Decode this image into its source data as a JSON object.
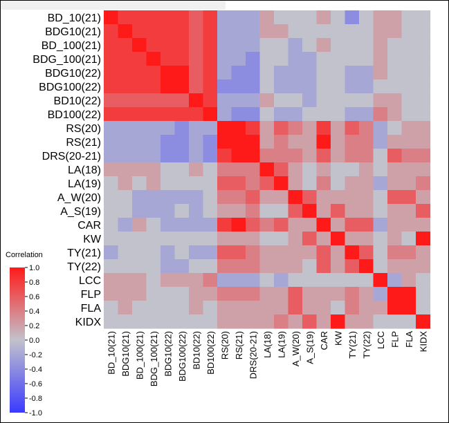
{
  "chart_data": {
    "type": "heatmap",
    "title": "",
    "row_labels": [
      "BD_10(21)",
      "BDG10(21)",
      "BD_100(21)",
      "BDG_100(21)",
      "BDG10(22)",
      "BDG100(22)",
      "BD10(22)",
      "BD100(22)",
      "RS(20)",
      "RS(21)",
      "DRS(20-21)",
      "LA(18)",
      "LA(19)",
      "A_W(20)",
      "A_S(19)",
      "CAR",
      "KW",
      "TY(21)",
      "TY(22)",
      "LCC",
      "FLP",
      "FLA",
      "KIDX"
    ],
    "col_labels": [
      "BD_10(21)",
      "BDG10(21)",
      "BD_100(21)",
      "BDG_100(21)",
      "BDG10(22)",
      "BDG100(22)",
      "BD10(22)",
      "BD100(22)",
      "RS(20)",
      "RS(21)",
      "DRS(20-21)",
      "LA(18)",
      "LA(19)",
      "A_W(20)",
      "A_S(19)",
      "CAR",
      "KW",
      "TY(21)",
      "TY(22)",
      "LCC",
      "FLP",
      "FLA",
      "KIDX"
    ],
    "values": [
      [
        1.0,
        0.8,
        0.8,
        0.8,
        0.8,
        0.8,
        0.6,
        0.8,
        -0.2,
        -0.2,
        -0.2,
        0.2,
        0.0,
        0.0,
        0.0,
        0.2,
        0.0,
        -0.4,
        0.0,
        0.2,
        0.2,
        0.0,
        0.0
      ],
      [
        0.8,
        1.0,
        0.8,
        0.8,
        0.8,
        0.8,
        0.6,
        0.8,
        -0.2,
        -0.2,
        -0.2,
        0.2,
        0.2,
        0.0,
        0.0,
        0.0,
        0.0,
        0.0,
        0.0,
        0.2,
        0.2,
        0.0,
        0.0
      ],
      [
        0.8,
        0.8,
        1.0,
        0.8,
        0.8,
        0.8,
        0.6,
        0.8,
        -0.2,
        -0.2,
        -0.2,
        0.0,
        0.0,
        -0.2,
        0.0,
        0.2,
        0.0,
        0.0,
        0.0,
        0.2,
        0.0,
        0.0,
        0.0
      ],
      [
        0.8,
        0.8,
        0.8,
        1.0,
        0.8,
        0.8,
        0.6,
        0.8,
        -0.2,
        -0.2,
        -0.4,
        0.0,
        0.0,
        -0.2,
        -0.2,
        0.0,
        0.0,
        0.0,
        0.0,
        0.2,
        0.0,
        0.0,
        0.0
      ],
      [
        0.8,
        0.8,
        0.8,
        0.8,
        1.0,
        1.0,
        0.6,
        0.8,
        -0.2,
        -0.4,
        -0.4,
        0.0,
        -0.2,
        -0.2,
        -0.2,
        0.0,
        0.0,
        -0.2,
        -0.2,
        0.2,
        0.0,
        0.0,
        0.0
      ],
      [
        0.8,
        0.8,
        0.8,
        0.8,
        1.0,
        1.0,
        0.6,
        0.8,
        -0.4,
        -0.4,
        -0.4,
        0.0,
        -0.2,
        -0.2,
        -0.2,
        0.0,
        0.0,
        -0.2,
        -0.2,
        0.0,
        0.0,
        0.0,
        0.0
      ],
      [
        0.6,
        0.6,
        0.6,
        0.6,
        0.6,
        0.6,
        1.0,
        0.8,
        -0.2,
        -0.2,
        -0.2,
        0.2,
        0.0,
        0.0,
        -0.2,
        0.0,
        0.0,
        0.0,
        0.0,
        0.2,
        0.2,
        0.0,
        0.0
      ],
      [
        0.8,
        0.8,
        0.8,
        0.8,
        0.8,
        0.8,
        0.8,
        1.0,
        -0.2,
        -0.4,
        -0.4,
        0.0,
        -0.2,
        -0.2,
        0.0,
        0.0,
        0.0,
        -0.2,
        -0.2,
        0.4,
        0.2,
        0.0,
        0.0
      ],
      [
        -0.2,
        -0.2,
        -0.2,
        -0.2,
        -0.2,
        -0.4,
        -0.2,
        -0.2,
        1.0,
        1.0,
        0.8,
        0.2,
        0.6,
        0.4,
        0.2,
        0.8,
        0.2,
        0.6,
        0.4,
        -0.2,
        0.0,
        0.2,
        0.2
      ],
      [
        -0.2,
        -0.2,
        -0.2,
        -0.2,
        -0.4,
        -0.4,
        -0.2,
        -0.4,
        1.0,
        1.0,
        1.0,
        0.2,
        0.4,
        0.2,
        0.2,
        1.0,
        0.2,
        0.4,
        0.4,
        -0.2,
        0.2,
        0.2,
        0.2
      ],
      [
        -0.2,
        -0.2,
        -0.2,
        -0.2,
        -0.4,
        -0.4,
        -0.2,
        -0.4,
        0.8,
        1.0,
        1.0,
        0.4,
        0.4,
        0.4,
        0.2,
        0.6,
        0.2,
        0.4,
        0.4,
        0.0,
        0.6,
        0.4,
        0.4
      ],
      [
        0.2,
        0.2,
        0.2,
        0.2,
        0.0,
        0.0,
        0.2,
        0.0,
        0.4,
        0.4,
        0.4,
        1.0,
        0.6,
        0.2,
        0.0,
        0.2,
        0.0,
        0.0,
        0.2,
        0.0,
        0.2,
        0.2,
        0.2
      ],
      [
        0.0,
        0.2,
        0.0,
        0.2,
        0.0,
        0.0,
        0.0,
        0.0,
        0.6,
        0.6,
        0.4,
        0.6,
        1.0,
        0.2,
        0.0,
        0.4,
        0.0,
        0.2,
        0.2,
        -0.2,
        0.2,
        0.2,
        0.4
      ],
      [
        0.0,
        0.0,
        -0.2,
        -0.2,
        -0.2,
        -0.2,
        -0.2,
        0.0,
        0.4,
        0.4,
        0.6,
        0.2,
        0.2,
        1.0,
        0.6,
        0.2,
        0.2,
        0.2,
        0.2,
        0.0,
        0.6,
        0.6,
        0.2
      ],
      [
        0.0,
        0.0,
        -0.2,
        -0.2,
        -0.2,
        0.0,
        -0.2,
        0.0,
        0.2,
        0.2,
        0.4,
        0.0,
        0.0,
        0.6,
        1.0,
        0.2,
        0.6,
        0.2,
        0.2,
        0.0,
        0.2,
        0.2,
        0.6
      ],
      [
        0.0,
        -0.2,
        0.2,
        0.0,
        -0.2,
        -0.2,
        -0.2,
        -0.2,
        0.8,
        1.0,
        0.6,
        0.4,
        0.6,
        0.2,
        0.2,
        1.0,
        0.2,
        0.6,
        0.6,
        -0.2,
        0.2,
        0.2,
        0.2
      ],
      [
        0.0,
        0.0,
        0.0,
        0.0,
        0.0,
        0.0,
        0.0,
        0.0,
        0.2,
        0.2,
        0.2,
        0.0,
        0.0,
        0.2,
        0.6,
        0.2,
        1.0,
        0.2,
        0.2,
        0.0,
        0.2,
        0.0,
        1.0
      ],
      [
        -0.2,
        0.0,
        0.0,
        0.0,
        -0.2,
        0.0,
        -0.2,
        -0.2,
        0.6,
        0.6,
        0.4,
        0.2,
        0.2,
        0.2,
        0.2,
        0.6,
        0.2,
        1.0,
        0.6,
        0.0,
        0.4,
        0.4,
        0.2
      ],
      [
        0.0,
        0.0,
        0.0,
        0.0,
        -0.2,
        -0.2,
        0.0,
        0.0,
        0.4,
        0.4,
        0.4,
        0.2,
        0.2,
        0.2,
        0.0,
        0.6,
        0.2,
        0.6,
        1.0,
        0.0,
        0.2,
        0.2,
        0.2
      ],
      [
        0.2,
        0.2,
        0.2,
        0.0,
        0.2,
        0.2,
        0.2,
        0.4,
        -0.2,
        -0.2,
        -0.2,
        0.0,
        -0.2,
        0.0,
        0.0,
        0.0,
        0.0,
        0.0,
        0.0,
        1.0,
        -0.2,
        0.2,
        0.0
      ],
      [
        0.2,
        0.2,
        0.2,
        0.0,
        0.0,
        0.0,
        0.2,
        0.2,
        0.4,
        0.4,
        0.4,
        0.2,
        0.2,
        0.6,
        0.2,
        0.2,
        0.2,
        0.4,
        0.2,
        -0.2,
        1.0,
        1.0,
        0.0
      ],
      [
        0.0,
        0.2,
        0.0,
        0.0,
        0.0,
        0.0,
        0.2,
        0.0,
        0.2,
        0.2,
        0.2,
        0.2,
        0.2,
        0.6,
        0.2,
        0.2,
        0.0,
        0.4,
        0.2,
        0.2,
        1.0,
        1.0,
        0.0
      ],
      [
        0.0,
        0.0,
        0.0,
        0.0,
        0.0,
        0.0,
        0.0,
        0.0,
        0.2,
        0.2,
        0.2,
        0.2,
        0.4,
        0.2,
        0.6,
        0.2,
        1.0,
        0.2,
        0.2,
        0.0,
        0.0,
        0.0,
        1.0
      ]
    ],
    "value_range": [
      -1.0,
      1.0
    ],
    "legend": {
      "title": "Correlation",
      "placement": "bottom-left",
      "ticks": [
        1.0,
        0.8,
        0.6,
        0.4,
        0.2,
        0.0,
        -0.2,
        -0.4,
        -0.6,
        -0.8,
        -1.0
      ],
      "tick_labels": [
        "1.0",
        "0.8",
        "0.6",
        "0.4",
        "0.2",
        "0.0",
        "-0.2",
        "-0.4",
        "-0.6",
        "-0.8",
        "-1.0"
      ]
    },
    "colors": {
      "positive_max": "#ff1a1a",
      "neutral": "#c2c2cc",
      "negative_max": "#3a3aff"
    }
  }
}
